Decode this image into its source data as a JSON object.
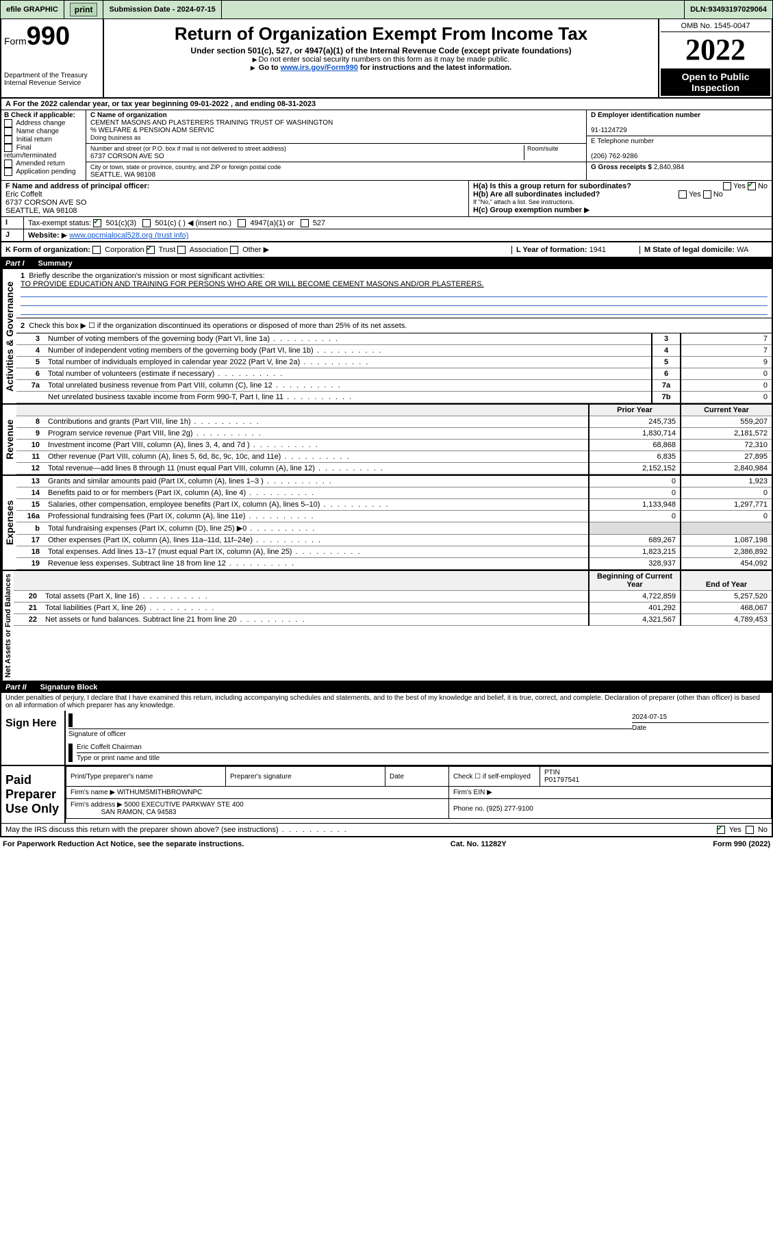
{
  "topbar": {
    "efile": "efile GRAPHIC",
    "print": "print",
    "submission_label": "Submission Date - ",
    "submission_date": "2024-07-15",
    "dln_label": "DLN: ",
    "dln": "93493197029064"
  },
  "header": {
    "form_prefix": "Form",
    "form_number": "990",
    "dept": "Department of the Treasury\nInternal Revenue Service",
    "title": "Return of Organization Exempt From Income Tax",
    "subtitle": "Under section 501(c), 527, or 4947(a)(1) of the Internal Revenue Code (except private foundations)",
    "instr1": "Do not enter social security numbers on this form as it may be made public.",
    "instr2_pre": "Go to ",
    "instr2_link": "www.irs.gov/Form990",
    "instr2_post": " for instructions and the latest information.",
    "omb": "OMB No. 1545-0047",
    "year": "2022",
    "badge": "Open to Public Inspection"
  },
  "period": {
    "label_a": "A",
    "text": "For the 2022 calendar year, or tax year beginning ",
    "begin": "09-01-2022",
    "mid": " , and ending ",
    "end": "08-31-2023"
  },
  "boxB": {
    "header": "B Check if applicable:",
    "items": [
      "Address change",
      "Name change",
      "Initial return",
      "Final return/terminated",
      "Amended return",
      "Application pending"
    ]
  },
  "boxC": {
    "name_label": "C Name of organization",
    "name": "CEMENT MASONS AND PLASTERERS TRAINING TRUST OF WASHINGTON",
    "care_of": "% WELFARE & PENSION ADM SERVIC",
    "dba_label": "Doing business as",
    "addr_label": "Number and street (or P.O. box if mail is not delivered to street address)",
    "room_label": "Room/suite",
    "addr": "6737 CORSON AVE SO",
    "city_label": "City or town, state or province, country, and ZIP or foreign postal code",
    "city": "SEATTLE, WA  98108"
  },
  "boxD": {
    "label": "D Employer identification number",
    "value": "91-1124729"
  },
  "boxE": {
    "label": "E Telephone number",
    "value": "(206) 762-9286"
  },
  "boxG": {
    "label": "G Gross receipts $ ",
    "value": "2,840,984"
  },
  "boxF": {
    "label": "F  Name and address of principal officer:",
    "name": "Eric Coffelt",
    "addr1": "6737 CORSON AVE SO",
    "addr2": "SEATTLE, WA  98108"
  },
  "boxH": {
    "a": "H(a)  Is this a group return for subordinates?",
    "a_yes": "Yes",
    "a_no": "No",
    "b": "H(b)  Are all subordinates included?",
    "b_yes": "Yes",
    "b_no": "No",
    "b_note": "If \"No,\" attach a list. See instructions.",
    "c": "H(c)  Group exemption number"
  },
  "boxI": {
    "label": "Tax-exempt status:",
    "o1": "501(c)(3)",
    "o2": "501(c) (  ) ◀ (insert no.)",
    "o3": "4947(a)(1) or",
    "o4": "527"
  },
  "boxJ": {
    "label": "Website:",
    "value": "www.opcmialocal528.org (trust info)"
  },
  "boxK": {
    "label": "K Form of organization:",
    "opts": [
      "Corporation",
      "Trust",
      "Association",
      "Other"
    ],
    "checked_idx": 1
  },
  "boxL": {
    "label": "L Year of formation: ",
    "value": "1941"
  },
  "boxM": {
    "label": "M State of legal domicile: ",
    "value": "WA"
  },
  "part1": {
    "header_num": "Part I",
    "header_title": "Summary",
    "line1_label": "Briefly describe the organization's mission or most significant activities:",
    "line1_text": "TO PROVIDE EDUCATION AND TRAINING FOR PERSONS WHO ARE OR WILL BECOME CEMENT MASONS AND/OR PLASTERERS.",
    "line2": "Check this box ▶ ☐  if the organization discontinued its operations or disposed of more than 25% of its net assets.",
    "gov_rows": [
      {
        "n": "3",
        "label": "Number of voting members of the governing body (Part VI, line 1a)",
        "box": "3",
        "val": "7"
      },
      {
        "n": "4",
        "label": "Number of independent voting members of the governing body (Part VI, line 1b)",
        "box": "4",
        "val": "7"
      },
      {
        "n": "5",
        "label": "Total number of individuals employed in calendar year 2022 (Part V, line 2a)",
        "box": "5",
        "val": "9"
      },
      {
        "n": "6",
        "label": "Total number of volunteers (estimate if necessary)",
        "box": "6",
        "val": "0"
      },
      {
        "n": "7a",
        "label": "Total unrelated business revenue from Part VIII, column (C), line 12",
        "box": "7a",
        "val": "0"
      },
      {
        "n": "",
        "label": "Net unrelated business taxable income from Form 990-T, Part I, line 11",
        "box": "7b",
        "val": "0"
      }
    ],
    "col_prior": "Prior Year",
    "col_current": "Current Year",
    "revenue_rows": [
      {
        "n": "8",
        "label": "Contributions and grants (Part VIII, line 1h)",
        "p": "245,735",
        "c": "559,207"
      },
      {
        "n": "9",
        "label": "Program service revenue (Part VIII, line 2g)",
        "p": "1,830,714",
        "c": "2,181,572"
      },
      {
        "n": "10",
        "label": "Investment income (Part VIII, column (A), lines 3, 4, and 7d )",
        "p": "68,868",
        "c": "72,310"
      },
      {
        "n": "11",
        "label": "Other revenue (Part VIII, column (A), lines 5, 6d, 8c, 9c, 10c, and 11e)",
        "p": "6,835",
        "c": "27,895"
      },
      {
        "n": "12",
        "label": "Total revenue—add lines 8 through 11 (must equal Part VIII, column (A), line 12)",
        "p": "2,152,152",
        "c": "2,840,984"
      }
    ],
    "expense_rows": [
      {
        "n": "13",
        "label": "Grants and similar amounts paid (Part IX, column (A), lines 1–3 )",
        "p": "0",
        "c": "1,923"
      },
      {
        "n": "14",
        "label": "Benefits paid to or for members (Part IX, column (A), line 4)",
        "p": "0",
        "c": "0"
      },
      {
        "n": "15",
        "label": "Salaries, other compensation, employee benefits (Part IX, column (A), lines 5–10)",
        "p": "1,133,948",
        "c": "1,297,771"
      },
      {
        "n": "16a",
        "label": "Professional fundraising fees (Part IX, column (A), line 11e)",
        "p": "0",
        "c": "0"
      },
      {
        "n": "b",
        "label": "Total fundraising expenses (Part IX, column (D), line 25) ▶0",
        "p": "",
        "c": ""
      },
      {
        "n": "17",
        "label": "Other expenses (Part IX, column (A), lines 11a–11d, 11f–24e)",
        "p": "689,267",
        "c": "1,087,198"
      },
      {
        "n": "18",
        "label": "Total expenses. Add lines 13–17 (must equal Part IX, column (A), line 25)",
        "p": "1,823,215",
        "c": "2,386,892"
      },
      {
        "n": "19",
        "label": "Revenue less expenses. Subtract line 18 from line 12",
        "p": "328,937",
        "c": "454,092"
      }
    ],
    "col_begin": "Beginning of Current Year",
    "col_end": "End of Year",
    "net_rows": [
      {
        "n": "20",
        "label": "Total assets (Part X, line 16)",
        "p": "4,722,859",
        "c": "5,257,520"
      },
      {
        "n": "21",
        "label": "Total liabilities (Part X, line 26)",
        "p": "401,292",
        "c": "468,067"
      },
      {
        "n": "22",
        "label": "Net assets or fund balances. Subtract line 21 from line 20",
        "p": "4,321,567",
        "c": "4,789,453"
      }
    ],
    "side_gov": "Activities & Governance",
    "side_rev": "Revenue",
    "side_exp": "Expenses",
    "side_net": "Net Assets or Fund Balances"
  },
  "part2": {
    "header_num": "Part II",
    "header_title": "Signature Block",
    "penalty": "Under penalties of perjury, I declare that I have examined this return, including accompanying schedules and statements, and to the best of my knowledge and belief, it is true, correct, and complete. Declaration of preparer (other than officer) is based on all information of which preparer has any knowledge.",
    "sign_here": "Sign Here",
    "sig_officer": "Signature of officer",
    "sig_date_label": "Date",
    "sig_date": "2024-07-15",
    "sig_name": "Eric Coffelt  Chairman",
    "sig_name_label": "Type or print name and title",
    "paid_prep": "Paid Preparer Use Only",
    "prep_name_label": "Print/Type preparer's name",
    "prep_sig_label": "Preparer's signature",
    "date_label": "Date",
    "check_label": "Check ☐ if self-employed",
    "ptin_label": "PTIN",
    "ptin": "P01797541",
    "firm_name_label": "Firm's name   ▶",
    "firm_name": "WITHUMSMITHBROWNPC",
    "firm_ein_label": "Firm's EIN ▶",
    "firm_addr_label": "Firm's address ▶",
    "firm_addr": "5000 EXECUTIVE PARKWAY STE 400",
    "firm_city": "SAN RAMON, CA  94583",
    "phone_label": "Phone no. ",
    "phone": "(925) 277-9100",
    "discuss": "May the IRS discuss this return with the preparer shown above? (see instructions)",
    "yes": "Yes",
    "no": "No"
  },
  "footer": {
    "left": "For Paperwork Reduction Act Notice, see the separate instructions.",
    "mid": "Cat. No. 11282Y",
    "right": "Form 990 (2022)"
  }
}
